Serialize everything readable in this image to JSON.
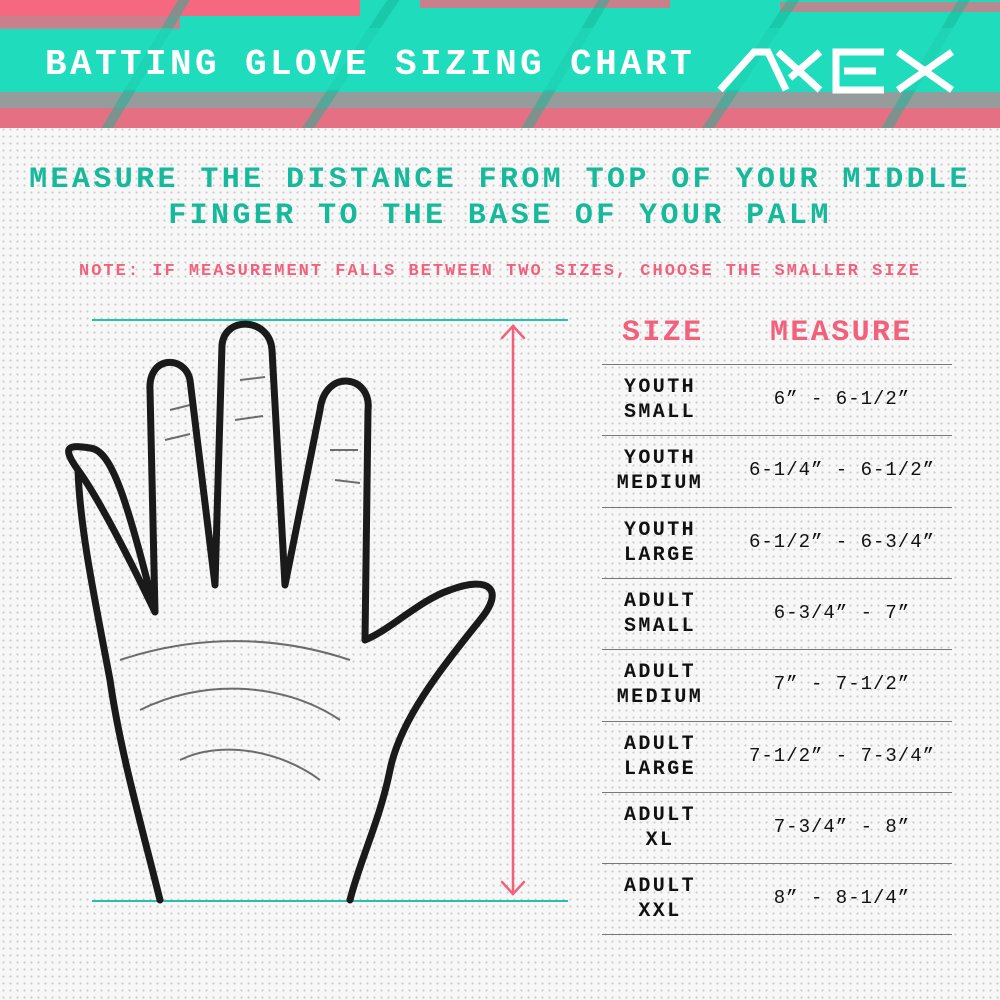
{
  "banner": {
    "title": "BATTING GLOVE SIZING CHART",
    "logo_text": "AXE",
    "background_color": "#1fdcbd",
    "accent_color": "#f5687f"
  },
  "instructions": {
    "line1": "MEASURE THE DISTANCE FROM TOP OF YOUR MIDDLE",
    "line2": "FINGER TO THE BASE OF YOUR PALM"
  },
  "note": "NOTE: IF MEASUREMENT FALLS BETWEEN TWO SIZES, CHOOSE THE SMALLER SIZE",
  "illustration": {
    "icon": "hand-outline-icon",
    "measure_arrow": "double-arrow-vertical"
  },
  "table": {
    "headers": {
      "size": "SIZE",
      "measure": "MEASURE"
    },
    "rows": [
      {
        "line1": "YOUTH",
        "line2": "SMALL",
        "measure": "6” - 6-1/2”"
      },
      {
        "line1": "YOUTH",
        "line2": "MEDIUM",
        "measure": "6-1/4” - 6-1/2”"
      },
      {
        "line1": "YOUTH",
        "line2": "LARGE",
        "measure": "6-1/2” - 6-3/4”"
      },
      {
        "line1": "ADULT",
        "line2": "SMALL",
        "measure": "6-3/4” - 7”"
      },
      {
        "line1": "ADULT",
        "line2": "MEDIUM",
        "measure": "7” - 7-1/2”"
      },
      {
        "line1": "ADULT",
        "line2": "LARGE",
        "measure": "7-1/2” - 7-3/4”"
      },
      {
        "line1": "ADULT",
        "line2": "XL",
        "measure": "7-3/4” - 8”"
      },
      {
        "line1": "ADULT",
        "line2": "XXL",
        "measure": "8” - 8-1/4”"
      }
    ]
  }
}
